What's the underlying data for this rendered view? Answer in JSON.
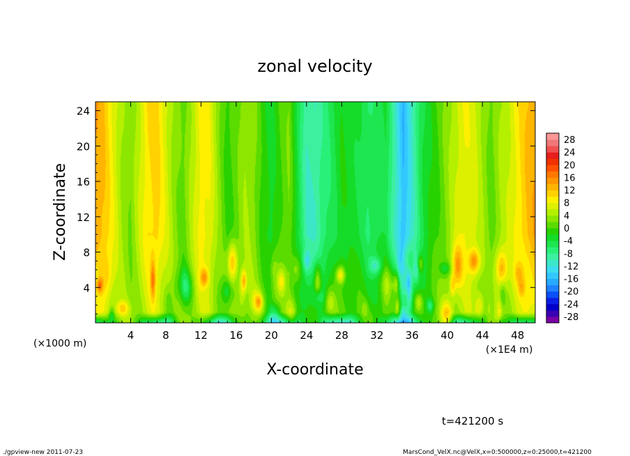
{
  "chart_data": {
    "type": "heatmap",
    "title": "zonal velocity",
    "xlabel": "X-coordinate",
    "ylabel": "Z-coordinate",
    "x_unit_left": "(×1000 m)",
    "x_unit_right": "(×1E4 m)",
    "x_ticks": [
      "4",
      "8",
      "12",
      "16",
      "20",
      "24",
      "28",
      "32",
      "36",
      "40",
      "44",
      "48"
    ],
    "x_tick_values": [
      4,
      8,
      12,
      16,
      20,
      24,
      28,
      32,
      36,
      40,
      44,
      48
    ],
    "xlim": [
      0,
      50
    ],
    "y_ticks": [
      "4",
      "8",
      "12",
      "16",
      "20",
      "24"
    ],
    "y_tick_values": [
      4,
      8,
      12,
      16,
      20,
      24
    ],
    "ylim": [
      0,
      25
    ],
    "colorbar_labels": [
      "28",
      "24",
      "20",
      "16",
      "12",
      "8",
      "4",
      "0",
      "-4",
      "-8",
      "-12",
      "-16",
      "-20",
      "-24",
      "-28"
    ],
    "colorbar_levels": [
      -30,
      -28,
      -26,
      -24,
      -22,
      -20,
      -18,
      -16,
      -14,
      -12,
      -10,
      -8,
      -6,
      -4,
      -2,
      0,
      2,
      4,
      6,
      8,
      10,
      12,
      14,
      16,
      18,
      20,
      22,
      24,
      26,
      28,
      30
    ],
    "colorbar_colors": [
      "#7a00a6",
      "#3c00b4",
      "#0000c8",
      "#0a1ee6",
      "#0a50f5",
      "#1e82ff",
      "#28aaff",
      "#32c8ff",
      "#3cdcf0",
      "#3ce6c8",
      "#3cf0a0",
      "#28f078",
      "#1ee650",
      "#14dc28",
      "#28d200",
      "#5adc00",
      "#8ce600",
      "#b4f000",
      "#dcf000",
      "#fff000",
      "#ffd200",
      "#ffb400",
      "#ff9600",
      "#ff7800",
      "#ff5000",
      "#f03200",
      "#e61e1e",
      "#f05050",
      "#f07878",
      "#fa9696"
    ],
    "value_range": [
      -30,
      30
    ],
    "column_profile": {
      "x": [
        0,
        1,
        2,
        3,
        4,
        5,
        6,
        7,
        8,
        9,
        10,
        11,
        12,
        13,
        14,
        15,
        16,
        17,
        18,
        19,
        20,
        21,
        22,
        23,
        24,
        25,
        26,
        27,
        28,
        29,
        30,
        31,
        32,
        33,
        34,
        35,
        36,
        37,
        38,
        39,
        40,
        41,
        42,
        43,
        44,
        45,
        46,
        47,
        48,
        49,
        50
      ],
      "upper_mean": [
        14,
        12,
        8,
        4,
        2,
        6,
        10,
        11,
        7,
        3,
        1,
        5,
        9,
        8,
        3,
        -1,
        1,
        4,
        3,
        -1,
        -3,
        0,
        2,
        -4,
        -10,
        -10,
        -7,
        -5,
        -2,
        -3,
        -4,
        -6,
        -5,
        -4,
        -10,
        -16,
        -11,
        -5,
        -2,
        0,
        3,
        6,
        8,
        7,
        4,
        1,
        4,
        6,
        9,
        12,
        14
      ]
    },
    "annotations": {
      "time": "t=421200 s",
      "footer_left": "./gpview-new   2011-07-23",
      "footer_right": "MarsCond_VelX.nc@VelX,x=0:500000,z=0:25000,t=421200"
    }
  }
}
